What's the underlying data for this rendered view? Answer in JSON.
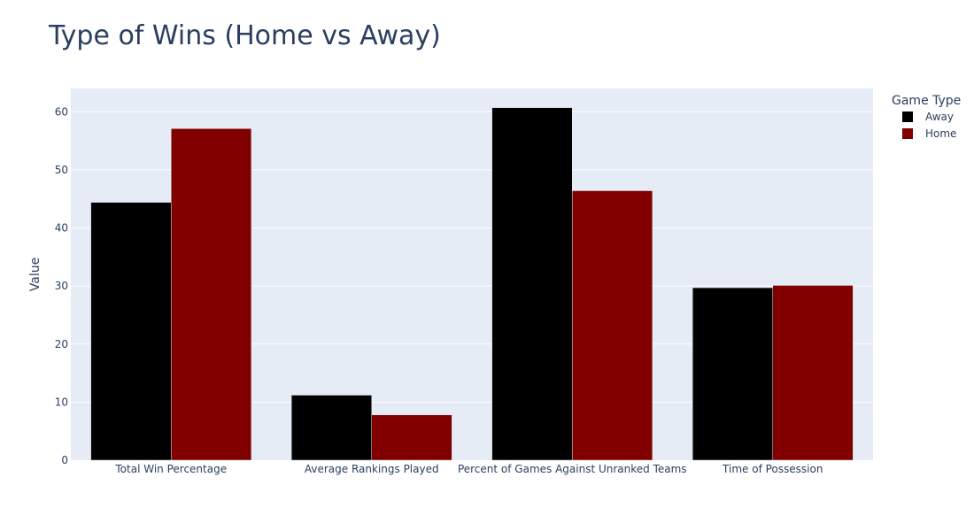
{
  "chart_data": {
    "type": "bar",
    "title": "Type of Wins (Home vs Away)",
    "xlabel": "",
    "ylabel": "Value",
    "categories": [
      "Total Win Percentage",
      "Average Rankings Played",
      "Percent of Games Against Unranked Teams",
      "Time of Possession"
    ],
    "series": [
      {
        "name": "Away",
        "color": "#000000",
        "values": [
          44.4,
          11.2,
          60.7,
          29.7
        ]
      },
      {
        "name": "Home",
        "color": "#800000",
        "values": [
          57.1,
          7.8,
          46.4,
          30.1
        ]
      }
    ],
    "ylim": [
      0,
      64
    ],
    "yticks": [
      0,
      10,
      20,
      30,
      40,
      50,
      60
    ],
    "grid": true,
    "legend": {
      "title": "Game Type",
      "placement": "top-right"
    },
    "colors": {
      "plot_background": "#e5ecf6",
      "grid": "#ffffff",
      "text": "#2a3f5f"
    }
  }
}
